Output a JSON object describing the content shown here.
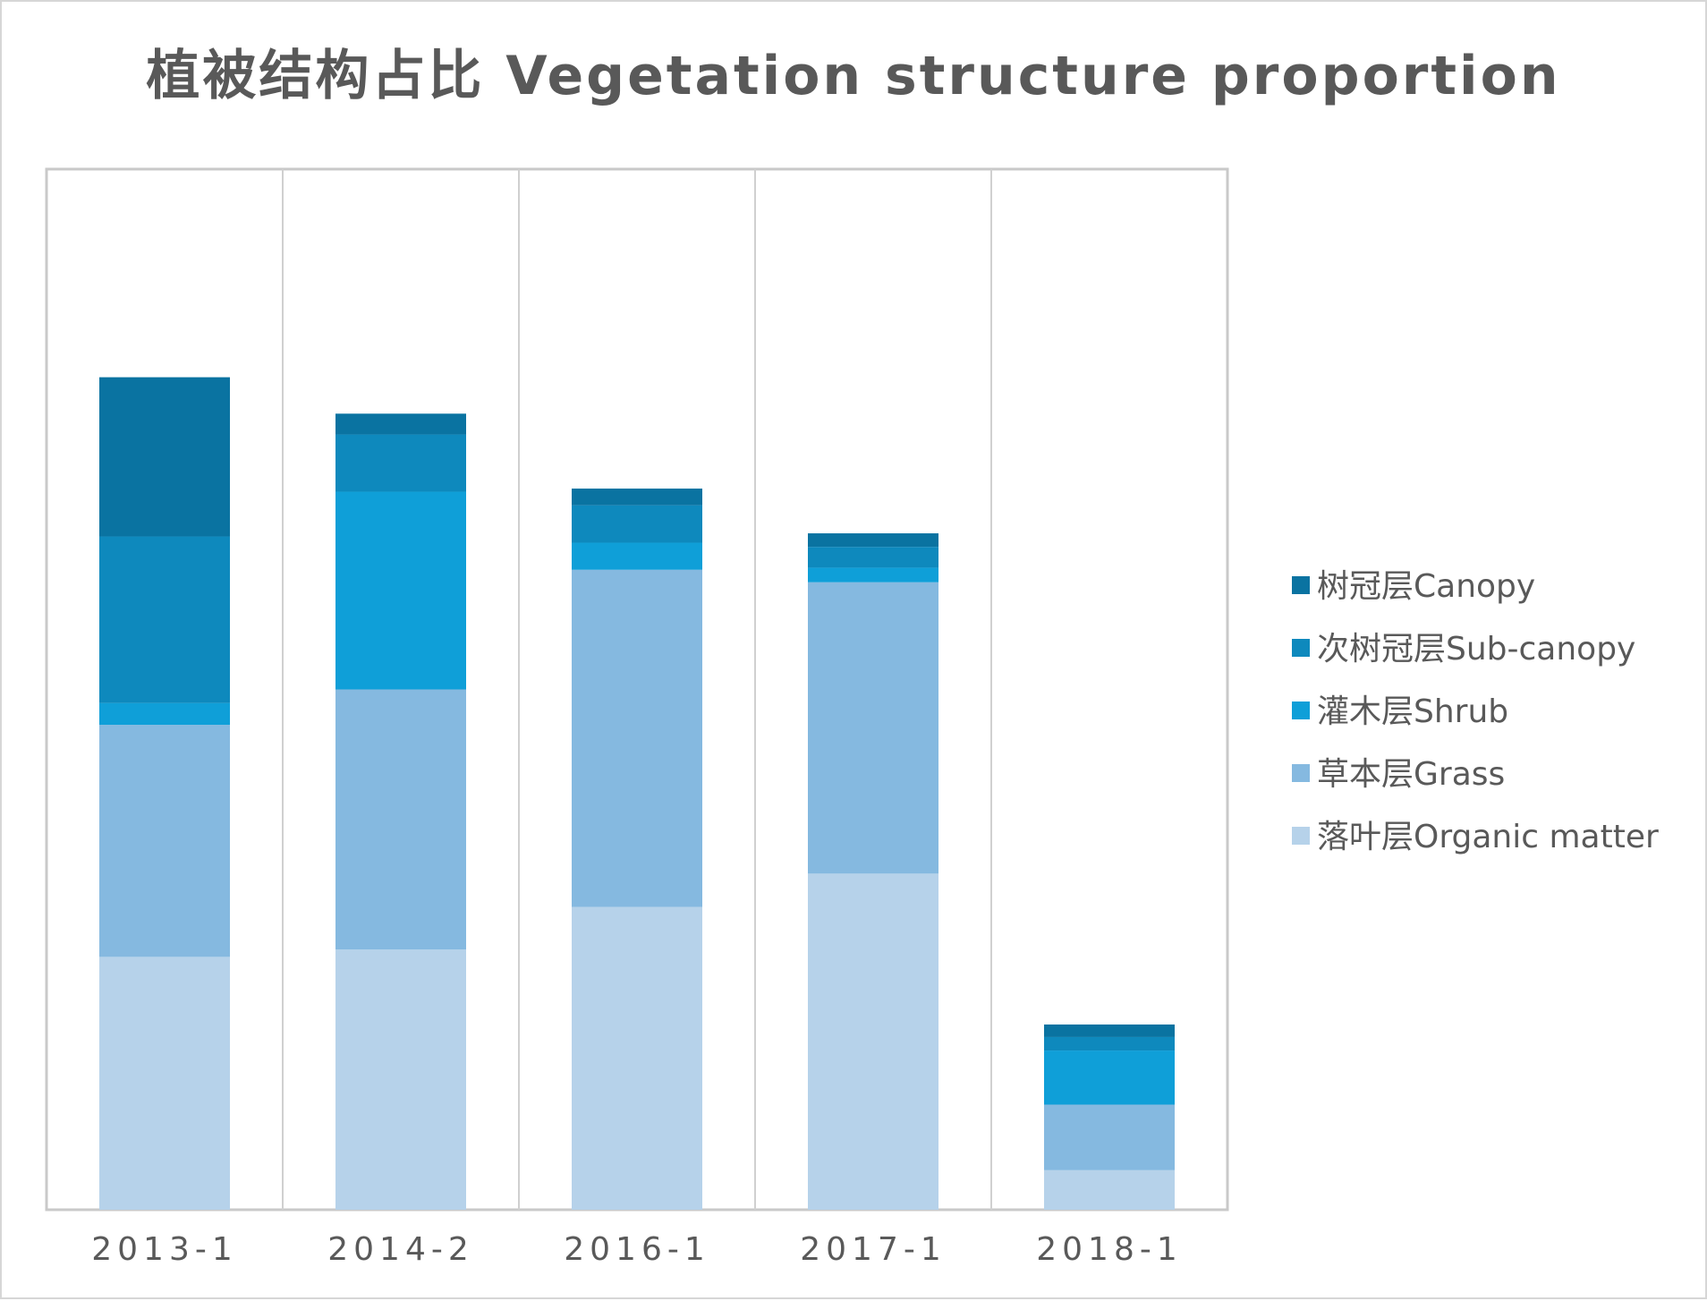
{
  "chart_data": {
    "type": "bar",
    "stacked": true,
    "title": "植被结构占比 Vegetation structure proportion",
    "xlabel": "",
    "ylabel": "",
    "ylim": [
      0,
      100
    ],
    "grid": "vertical",
    "legend_position": "right",
    "categories": [
      "2013-1",
      "2014-2",
      "2016-1",
      "2017-1",
      "2018-1"
    ],
    "series": [
      {
        "name": "落叶层Organic matter",
        "color": "#b6d2ea",
        "values": [
          24.3,
          25.0,
          29.1,
          32.3,
          3.8
        ]
      },
      {
        "name": "草本层Grass",
        "color": "#85b9e0",
        "values": [
          22.3,
          25.0,
          32.4,
          28.0,
          6.3
        ]
      },
      {
        "name": "灌木层Shrub",
        "color": "#0f9fd8",
        "values": [
          2.1,
          19.0,
          2.6,
          1.4,
          5.2
        ]
      },
      {
        "name": "次树冠层Sub-canopy",
        "color": "#0e89bd",
        "values": [
          16.0,
          5.5,
          3.6,
          2.0,
          1.3
        ]
      },
      {
        "name": "树冠层Canopy",
        "color": "#0a73a1",
        "values": [
          15.3,
          2.0,
          1.6,
          1.3,
          1.2
        ]
      }
    ]
  }
}
